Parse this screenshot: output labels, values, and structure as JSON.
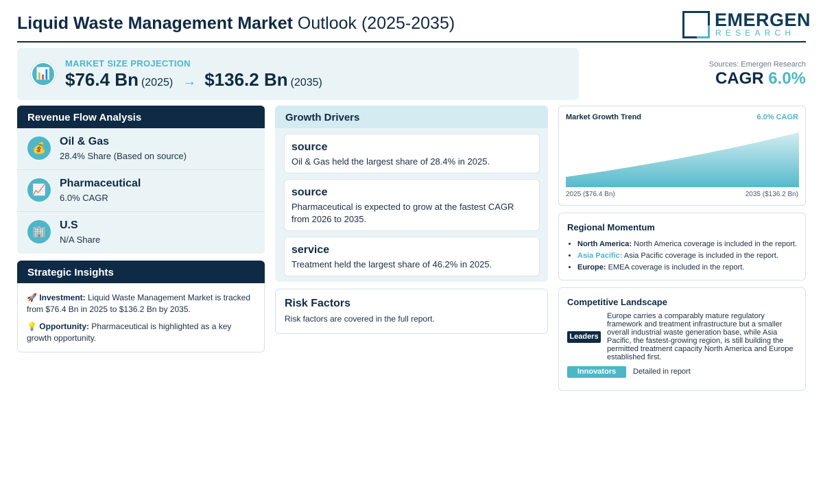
{
  "header": {
    "title_strong": "Liquid Waste Management Market",
    "title_light": "Outlook (2025-2035)",
    "logo_main": "EMERGEN",
    "logo_sub": "RESEARCH"
  },
  "market_size": {
    "label": "MARKET SIZE PROJECTION",
    "icon": "bar-chart-icon",
    "start_value": "$76.4 Bn",
    "start_year": "(2025)",
    "arrow": "→",
    "end_value": "$136.2 Bn",
    "end_year": "(2035)"
  },
  "summary": {
    "sources": "Sources: Emergen Research",
    "cagr_label": "CAGR",
    "cagr_value": "6.0%"
  },
  "revenue_flow": {
    "title": "Revenue Flow Analysis",
    "items": [
      {
        "icon": "money-bag-icon",
        "name": "Oil & Gas",
        "sub": "28.4% Share (Based on source)"
      },
      {
        "icon": "trend-chart-icon",
        "name": "Pharmaceutical",
        "sub": "6.0% CAGR"
      },
      {
        "icon": "building-icon",
        "name": "U.S",
        "sub": "N/A Share"
      }
    ]
  },
  "strategic_insights": {
    "title": "Strategic Insights",
    "investment_label": "Investment:",
    "investment_text": "Liquid Waste Management Market is tracked from $76.4 Bn in 2025 to $136.2 Bn by 2035.",
    "opportunity_label": "Opportunity:",
    "opportunity_text": "Pharmaceutical is highlighted as a key growth opportunity."
  },
  "growth_drivers": {
    "title": "Growth Drivers",
    "cards": [
      {
        "title": "source",
        "text": "Oil & Gas held the largest share of 28.4% in 2025."
      },
      {
        "title": "source",
        "text": "Pharmaceutical is expected to grow at the fastest CAGR from 2026 to 2035."
      },
      {
        "title": "service",
        "text": "Treatment held the largest share of 46.2% in 2025."
      }
    ]
  },
  "risk_factors": {
    "title": "Risk Factors",
    "text": "Risk factors are covered in the full report."
  },
  "market_trend": {
    "title": "Market Growth Trend",
    "cagr": "6.0% CAGR",
    "start_label": "2025 ($76.4 Bn)",
    "end_label": "2035 ($136.2 Bn)",
    "accent": "#4db6c9"
  },
  "chart_data": {
    "type": "area",
    "title": "Market Growth Trend",
    "x": [
      2025,
      2035
    ],
    "series": [
      {
        "values": [
          76.4,
          136.2
        ]
      }
    ]
  },
  "regional_momentum": {
    "title": "Regional Momentum",
    "items": [
      {
        "label": "North America:",
        "text": "North America coverage is included in the report."
      },
      {
        "label": "Asia Pacific:",
        "text": "Asia Pacific coverage is included in the report."
      },
      {
        "label": "Europe:",
        "text": "EMEA coverage is included in the report."
      }
    ]
  },
  "competitive_landscape": {
    "title": "Competitive Landscape",
    "leaders_label": "Leaders",
    "leaders_text": "Europe carries a comparably mature regulatory framework and treatment infrastructure but a smaller overall industrial waste generation base, while Asia Pacific, the fastest-growing region, is still building the permitted treatment capacity North America and Europe established first.",
    "innovators_label": "Innovators",
    "innovators_text": "Detailed in report"
  },
  "colors": {
    "navy": "#0f2a44",
    "teal": "#4db6c9",
    "panel_bg": "#eaf4f7"
  }
}
